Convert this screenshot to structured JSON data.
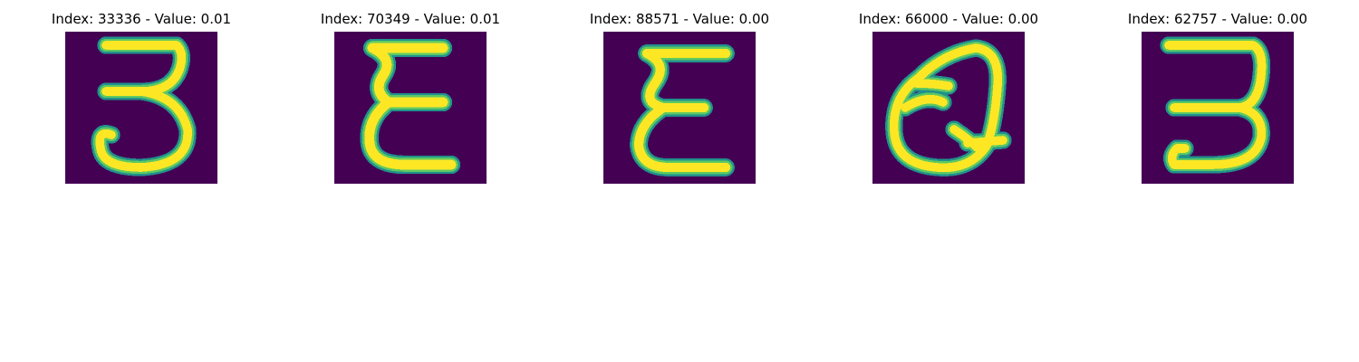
{
  "figure": {
    "panels": [
      {
        "title": "Index: 33336 - Value: 0.01",
        "glyph": "digit-3"
      },
      {
        "title": "Index: 70349 - Value: 0.01",
        "glyph": "epsilon-like"
      },
      {
        "title": "Index: 88571 - Value: 0.00",
        "glyph": "epsilon-like"
      },
      {
        "title": "Index: 66000 - Value: 0.00",
        "glyph": "letter-q"
      },
      {
        "title": "Index: 62757 - Value: 0.00",
        "glyph": "digit-3"
      }
    ],
    "colors": {
      "background": "#440154",
      "stroke_core": "#fde725",
      "stroke_edge": "#5ec962",
      "stroke_halo": "#21918c"
    }
  }
}
